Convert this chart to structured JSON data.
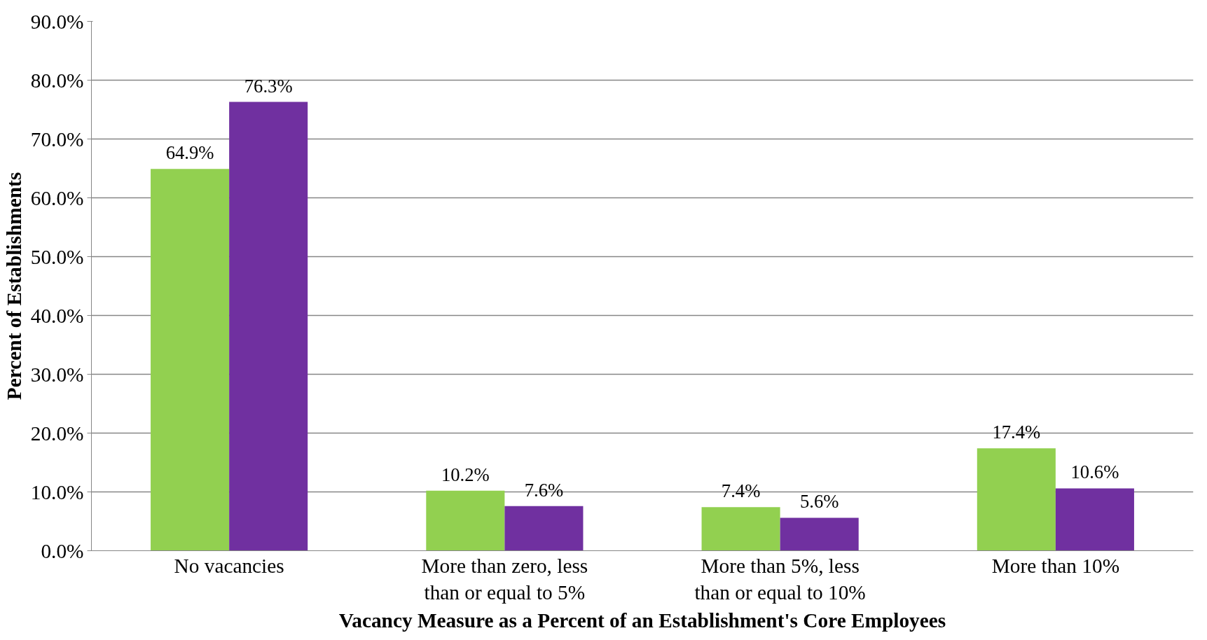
{
  "chart_data": {
    "type": "bar",
    "xlabel": "Vacancy Measure as a Percent of an Establishment's Core Employees",
    "ylabel": "Percent of Establishments",
    "categories": [
      "No vacancies",
      "More than zero, less than or equal to 5%",
      "More than 5%, less than or equal to 10%",
      "More than 10%"
    ],
    "series": [
      {
        "color": "#92d050",
        "values": [
          64.9,
          10.2,
          7.4,
          17.4
        ],
        "value_labels": [
          "64.9%",
          "10.2%",
          "7.4%",
          "17.4%"
        ]
      },
      {
        "color": "#7030a0",
        "values": [
          76.3,
          7.6,
          5.6,
          10.6
        ],
        "value_labels": [
          "76.3%",
          "7.6%",
          "5.6%",
          "10.6%"
        ]
      }
    ],
    "ylim": [
      0,
      90
    ],
    "yticks": [
      {
        "value": 0,
        "label": "0.0%"
      },
      {
        "value": 10,
        "label": "10.0%"
      },
      {
        "value": 20,
        "label": "20.0%"
      },
      {
        "value": 30,
        "label": "30.0%"
      },
      {
        "value": 40,
        "label": "40.0%"
      },
      {
        "value": 50,
        "label": "50.0%"
      },
      {
        "value": 60,
        "label": "60.0%"
      },
      {
        "value": 70,
        "label": "70.0%"
      },
      {
        "value": 80,
        "label": "80.0%"
      },
      {
        "value": 90,
        "label": "90.0%"
      }
    ],
    "grid": "y"
  }
}
